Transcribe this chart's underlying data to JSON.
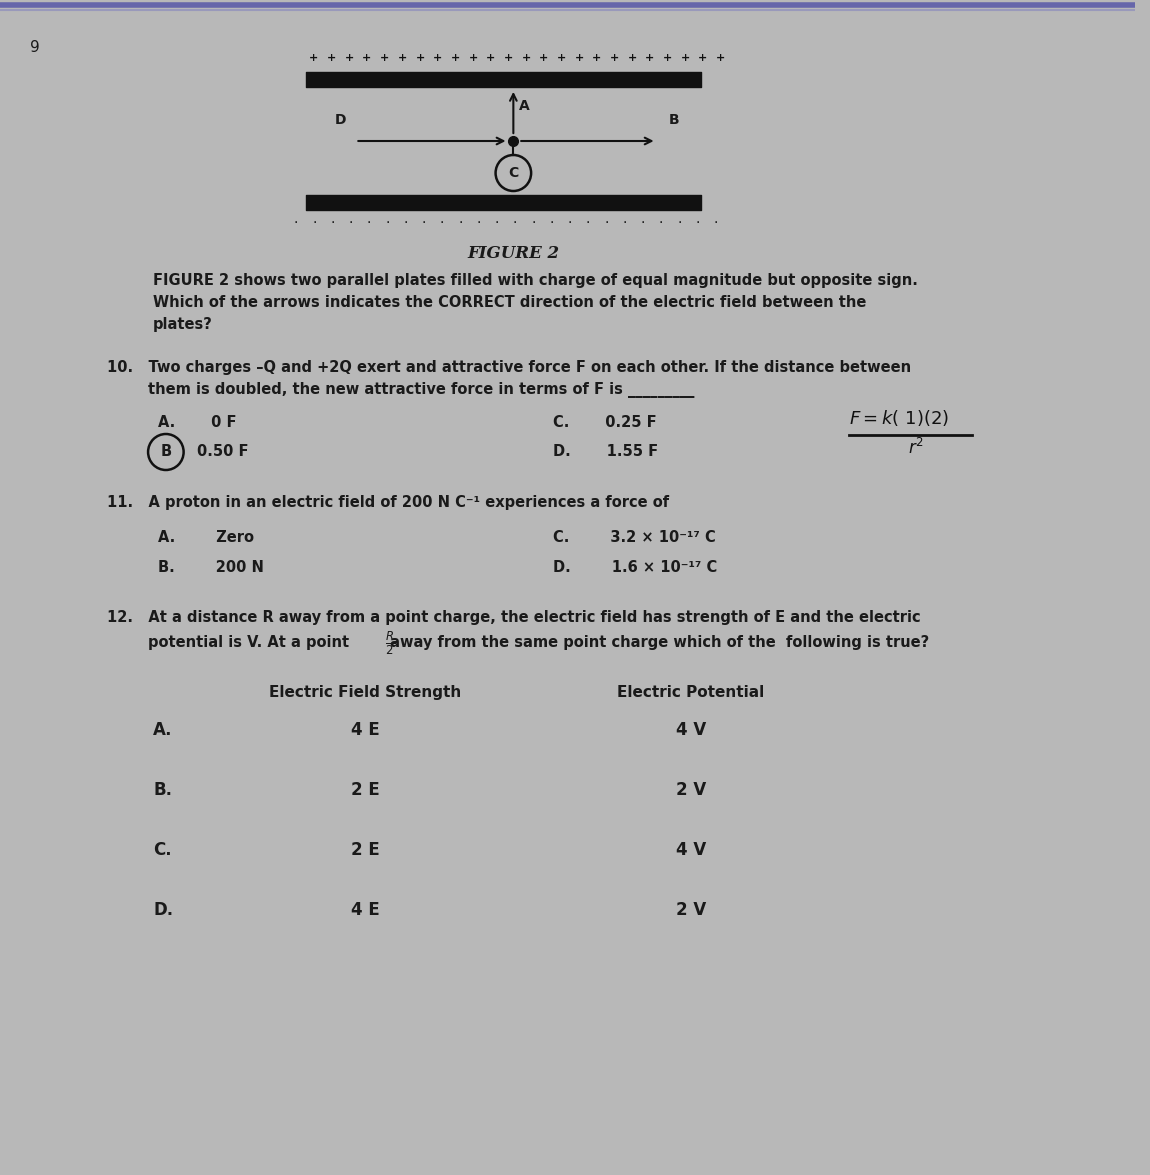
{
  "bg_color": "#b8b8b8",
  "text_color": "#1a1a1a",
  "plate_color": "#111111",
  "arrow_color": "#111111",
  "title_figure": "FIGURE 2",
  "fig_desc_line1": "FIGURE 2 shows two parallel plates filled with charge of equal magnitude but opposite sign.",
  "fig_desc_line2": "Which of the arrows indicates the CORRECT direction of the electric field between the",
  "fig_desc_line3": "plates?",
  "q10_line1": "10.   Two charges –Q and +2Q exert and attractive force F on each other. If the distance between",
  "q10_line2": "        them is doubled, the new attractive force in terms of F is _________",
  "q10_A": "A.       0 F",
  "q10_C": "C.       0.25 F",
  "q10_B": "0.50 F",
  "q10_D": "D.       1.55 F",
  "q11_line1": "11.   A proton in an electric field of 200 N C⁻¹ experiences a force of",
  "q11_A": "A.        Zero",
  "q11_B": "B.        200 N",
  "q11_C": "C.        3.2 × 10⁻¹⁷ C",
  "q11_D": "D.        1.6 × 10⁻¹⁷ C",
  "q12_line1": "12.   At a distance R away from a point charge, the electric field has strength of E and the electric",
  "q12_line2": "        potential is V. At a point        away from the same point charge which of the  following is true?",
  "q12_header1": "Electric Field Strength",
  "q12_header2": "Electric Potential",
  "q12_rows": [
    [
      "A.",
      "4 E",
      "4 V"
    ],
    [
      "B.",
      "2 E",
      "2 V"
    ],
    [
      "C.",
      "2 E",
      "4 V"
    ],
    [
      "D.",
      "4 E",
      "2 V"
    ]
  ],
  "formula_text": "F =k( 1)(2)",
  "formula_denom": "r²"
}
